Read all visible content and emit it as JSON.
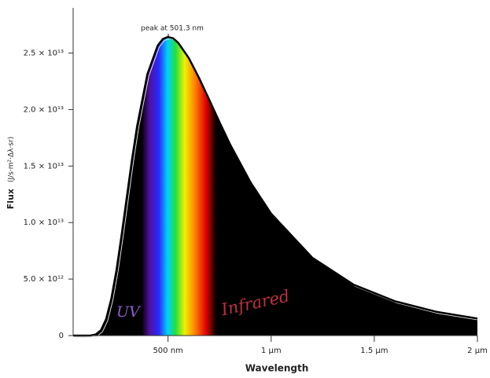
{
  "chart_data": {
    "type": "area",
    "x_label": "Wavelength",
    "y_label": "Flux",
    "y_unit": "(J/s·m²·Δλ·sr)",
    "x": [
      40,
      100,
      125,
      150,
      175,
      200,
      225,
      250,
      275,
      300,
      325,
      350,
      400,
      450,
      475,
      500,
      525,
      550,
      600,
      650,
      700,
      750,
      800,
      900,
      1000,
      1200,
      1400,
      1600,
      1800,
      2000
    ],
    "values": [
      0,
      185000000,
      8800000000,
      97800000000,
      483000000000,
      1467000000000,
      3245000000000,
      5790000000000,
      8890000000000,
      12230000000000,
      15520000000000,
      18520000000000,
      23140000000000,
      25660000000000,
      26250000000000,
      26430000000000,
      26310000000000,
      25900000000000,
      24580000000000,
      22810000000000,
      20850000000000,
      18860000000000,
      16950000000000,
      13560000000000,
      10780000000000,
      6880000000000,
      4500000000000,
      3040000000000,
      2110000000000,
      1506000000000
    ],
    "color": "#000000",
    "xlim": [
      40,
      2000
    ],
    "ylim": [
      0,
      29000000000000
    ],
    "xticks": [
      {
        "value": 500,
        "label": "500 nm"
      },
      {
        "value": 1000,
        "label": "1 µm"
      },
      {
        "value": 1500,
        "label": "1.5 µm"
      },
      {
        "value": 2000,
        "label": "2 µm"
      }
    ],
    "yticks": [
      0,
      {
        "value": 5000000000000,
        "label": "5.0 × 10¹²"
      },
      {
        "value": 10000000000000,
        "label": "1.0 × 10¹³"
      },
      {
        "value": 15000000000000,
        "label": "1.5 × 10¹³"
      },
      {
        "value": 20000000000000,
        "label": "2.0 × 10¹³"
      },
      {
        "value": 25000000000000,
        "label": "2.5 × 10¹³"
      }
    ],
    "annotations": [
      {
        "text": "peak at 501.3 nm",
        "x": 501.3
      },
      {
        "text": "UV",
        "color": "#8a5fd0"
      },
      {
        "text": "Infrared",
        "color": "#c03040"
      }
    ]
  }
}
